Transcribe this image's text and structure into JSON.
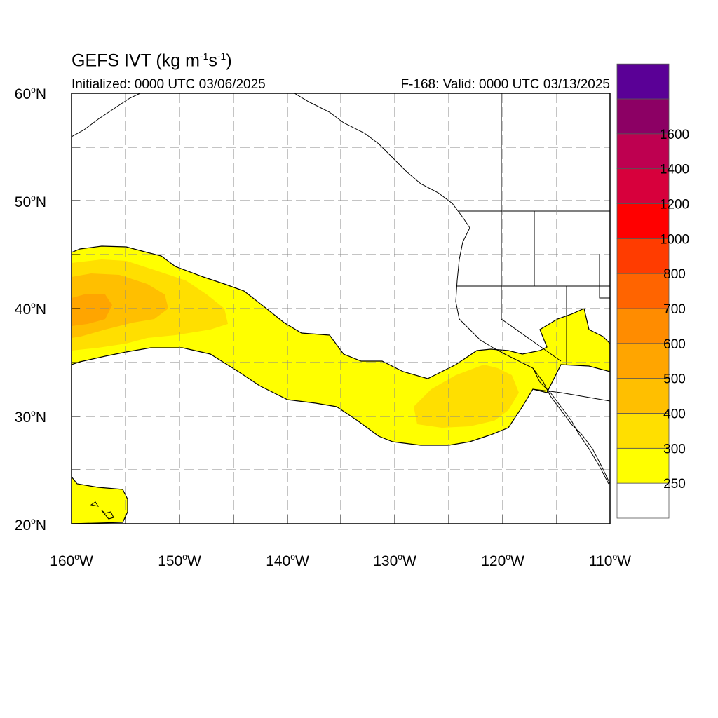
{
  "title": {
    "main": "GEFS IVT (kg m",
    "exp1": "-1",
    "mid": "s",
    "exp2": "-1",
    "close": ")"
  },
  "initialized": "Initialized: 0000 UTC 03/06/2025",
  "valid": "F-168: Valid: 0000 UTC 03/13/2025",
  "map": {
    "lon_range": [
      -160,
      -110
    ],
    "lat_range": [
      20,
      60
    ],
    "lon_ticks": [
      {
        "deg": "160",
        "dir": "W"
      },
      {
        "deg": "150",
        "dir": "W"
      },
      {
        "deg": "140",
        "dir": "W"
      },
      {
        "deg": "130",
        "dir": "W"
      },
      {
        "deg": "120",
        "dir": "W"
      },
      {
        "deg": "110",
        "dir": "W"
      }
    ],
    "lat_ticks": [
      {
        "deg": "60",
        "dir": "N"
      },
      {
        "deg": "50",
        "dir": "N"
      },
      {
        "deg": "40",
        "dir": "N"
      },
      {
        "deg": "30",
        "dir": "N"
      },
      {
        "deg": "20",
        "dir": "N"
      }
    ],
    "gridlines": "dashed every 5 degrees",
    "fill_colors": {
      "250": "#ffff00",
      "300": "#ffdf00",
      "400": "#ffbf00",
      "500": "#ffa500"
    }
  },
  "colorbar": {
    "levels": [
      "250",
      "300",
      "400",
      "500",
      "600",
      "700",
      "800",
      "1000",
      "1200",
      "1400",
      "1600"
    ],
    "colors": [
      "#ffffff",
      "#ffff00",
      "#ffdf00",
      "#ffbf00",
      "#ffa500",
      "#ff8c00",
      "#ff6400",
      "#ff3c00",
      "#ff0000",
      "#d7003c",
      "#be0050",
      "#8c0064",
      "#5a0096"
    ]
  }
}
